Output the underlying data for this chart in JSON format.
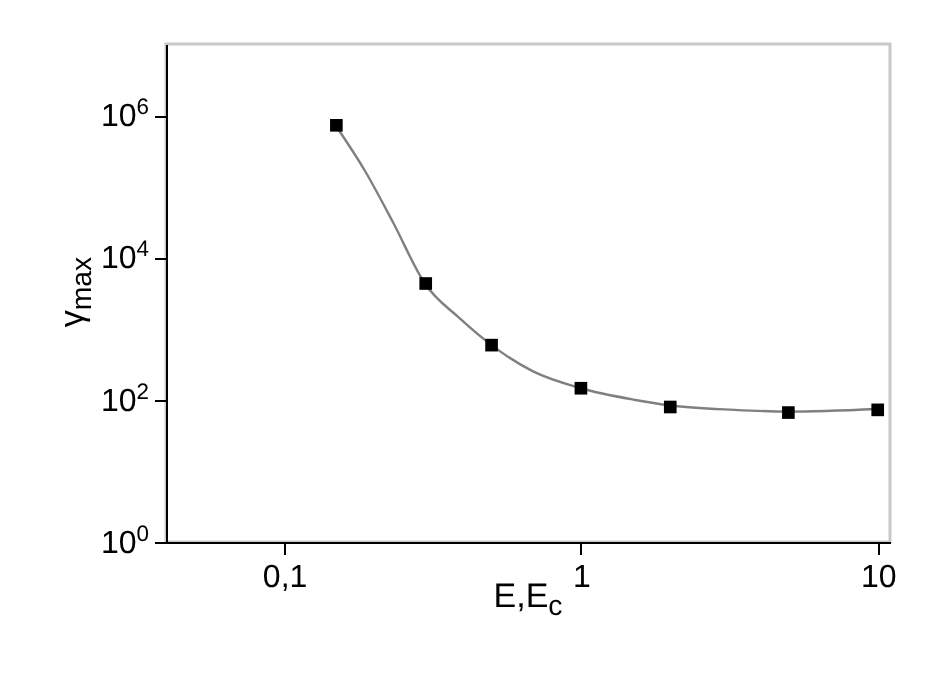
{
  "chart_data": {
    "type": "scatter",
    "xlabel": "E,E$_{c}$",
    "ylabel": "γ$_{max}$",
    "log": "xy",
    "grid": false,
    "xlim": [
      0.04,
      11
    ],
    "ylim": [
      1,
      10000000
    ],
    "xticks": [
      {
        "value": 0.1,
        "label": "0,1"
      },
      1,
      10
    ],
    "yticks": [
      {
        "value": 1,
        "label": "10$^{0}$"
      },
      {
        "value": 100,
        "label": "10$^{2}$"
      },
      {
        "value": 10000,
        "label": "10$^{4}$"
      },
      {
        "value": 1000000,
        "label": "10$^{6}$"
      }
    ],
    "series": [
      {
        "type": "line",
        "color": "#808080",
        "marker": "none",
        "line_style": "solid",
        "x": [
          0.149,
          0.188,
          0.232,
          0.298,
          0.39,
          0.5,
          0.69,
          1,
          1.51,
          2,
          3.29,
          5,
          10
        ],
        "values": [
          720000,
          160000,
          32000,
          4300,
          1400,
          585,
          250,
          145,
          100,
          83,
          72,
          68,
          74
        ]
      },
      {
        "color": "#000000",
        "marker": "square",
        "x": [
          0.15,
          0.3,
          0.5,
          1,
          2,
          5,
          10
        ],
        "values": [
          720000,
          4300,
          585,
          145,
          79,
          66,
          72
        ]
      }
    ]
  }
}
